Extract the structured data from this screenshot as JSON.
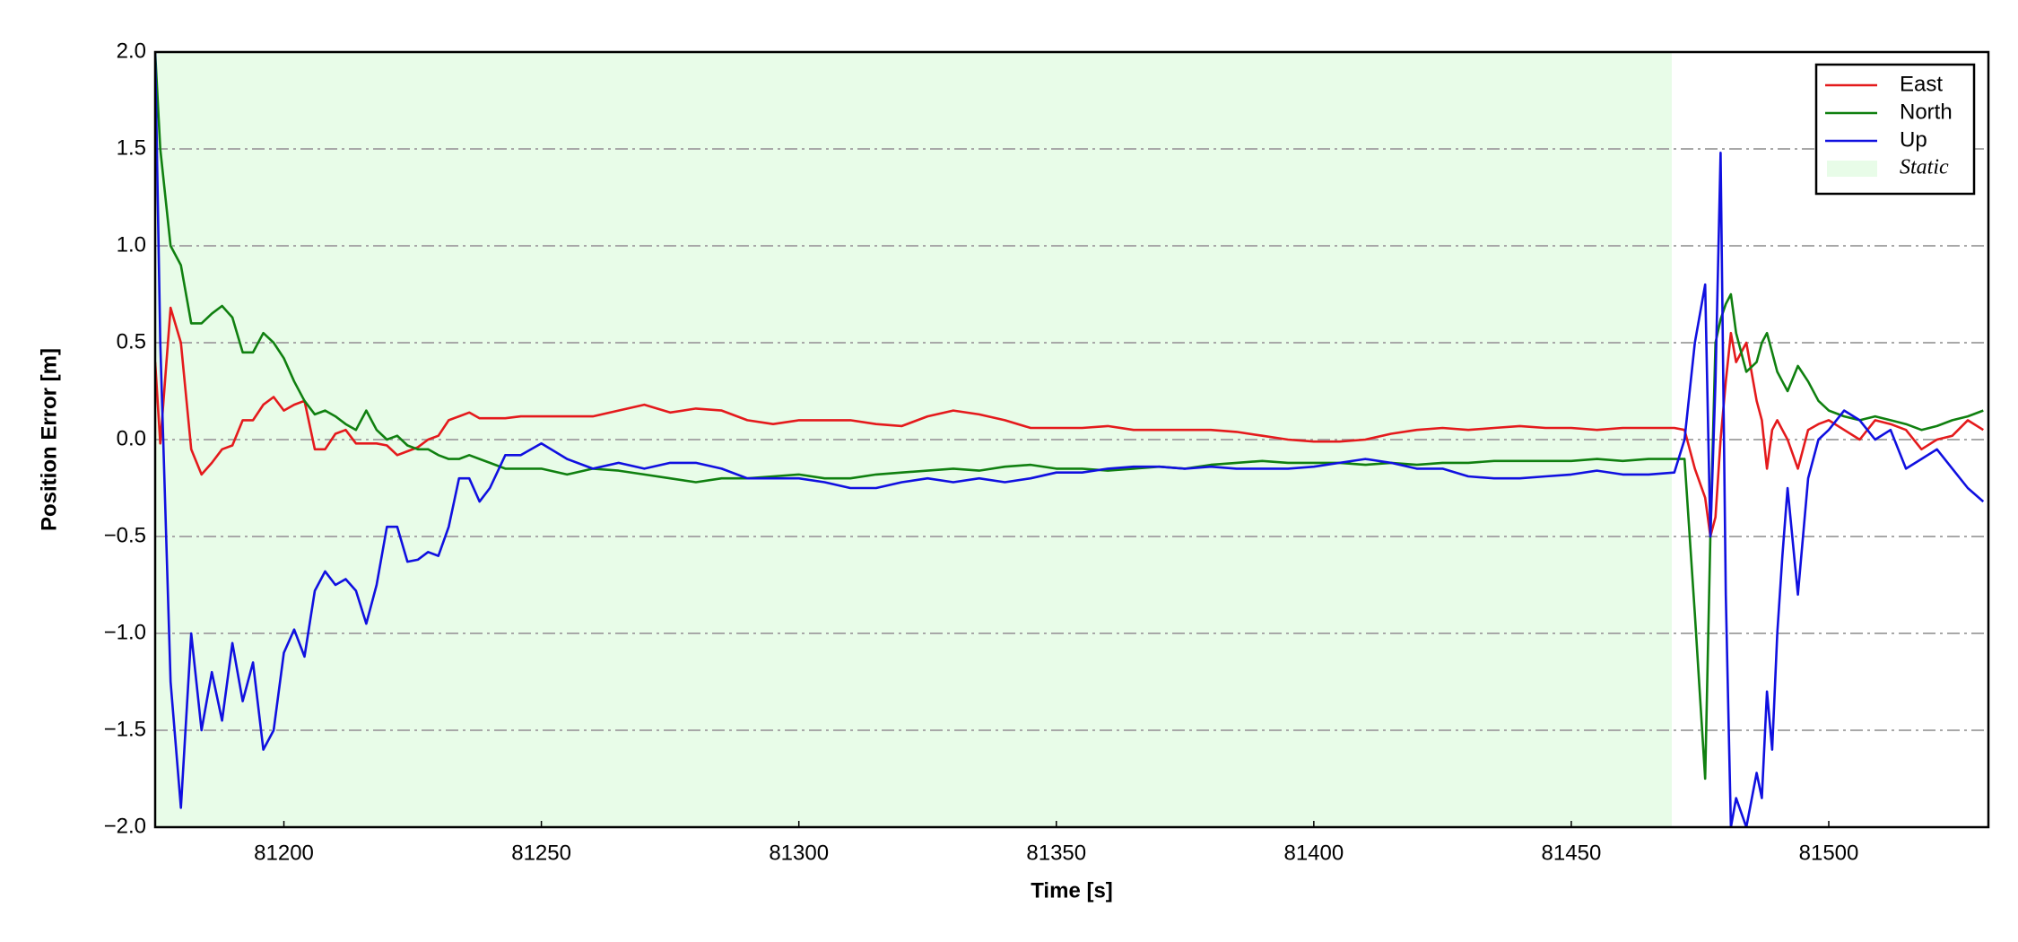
{
  "chart_data": {
    "type": "line",
    "xlabel": "Time [s]",
    "ylabel": "Position Error [m]",
    "x": [
      81175,
      81176,
      81178,
      81180,
      81182,
      81184,
      81186,
      81188,
      81190,
      81192,
      81194,
      81196,
      81198,
      81200,
      81202,
      81204,
      81206,
      81208,
      81210,
      81212,
      81214,
      81216,
      81218,
      81220,
      81222,
      81224,
      81226,
      81228,
      81230,
      81232,
      81234,
      81236,
      81238,
      81240,
      81243,
      81246,
      81250,
      81255,
      81260,
      81265,
      81270,
      81275,
      81280,
      81285,
      81290,
      81295,
      81300,
      81305,
      81310,
      81315,
      81320,
      81325,
      81330,
      81335,
      81340,
      81345,
      81350,
      81355,
      81360,
      81365,
      81370,
      81375,
      81380,
      81385,
      81390,
      81395,
      81400,
      81405,
      81410,
      81415,
      81420,
      81425,
      81430,
      81435,
      81440,
      81445,
      81450,
      81455,
      81460,
      81465,
      81470,
      81472,
      81474,
      81476,
      81477,
      81478,
      81479,
      81480,
      81481,
      81482,
      81484,
      81486,
      81487,
      81488,
      81489,
      81490,
      81491,
      81492,
      81494,
      81496,
      81498,
      81500,
      81503,
      81506,
      81509,
      81512,
      81515,
      81518,
      81521,
      81524,
      81527,
      81530
    ],
    "series": [
      {
        "name": "East",
        "color": "#e41a1c",
        "values": [
          0.4,
          -0.02,
          0.68,
          0.5,
          -0.05,
          -0.18,
          -0.12,
          -0.05,
          -0.03,
          0.1,
          0.1,
          0.18,
          0.22,
          0.15,
          0.18,
          0.2,
          -0.05,
          -0.05,
          0.03,
          0.05,
          -0.02,
          -0.02,
          -0.02,
          -0.03,
          -0.08,
          -0.06,
          -0.04,
          0.0,
          0.02,
          0.1,
          0.12,
          0.14,
          0.11,
          0.11,
          0.11,
          0.12,
          0.12,
          0.12,
          0.12,
          0.15,
          0.18,
          0.14,
          0.16,
          0.15,
          0.1,
          0.08,
          0.1,
          0.1,
          0.1,
          0.08,
          0.07,
          0.12,
          0.15,
          0.13,
          0.1,
          0.06,
          0.06,
          0.06,
          0.07,
          0.05,
          0.05,
          0.05,
          0.05,
          0.04,
          0.02,
          0.0,
          -0.01,
          -0.01,
          0.0,
          0.03,
          0.05,
          0.06,
          0.05,
          0.06,
          0.07,
          0.06,
          0.06,
          0.05,
          0.06,
          0.06,
          0.06,
          0.05,
          -0.15,
          -0.3,
          -0.5,
          -0.4,
          0.0,
          0.3,
          0.55,
          0.4,
          0.5,
          0.2,
          0.1,
          -0.15,
          0.05,
          0.1,
          0.05,
          0.0,
          -0.15,
          0.05,
          0.08,
          0.1,
          0.05,
          0.0,
          0.1,
          0.08,
          0.05,
          -0.05,
          0.0,
          0.02,
          0.1,
          0.05
        ]
      },
      {
        "name": "North",
        "color": "#108010",
        "values": [
          2.0,
          1.5,
          1.0,
          0.9,
          0.6,
          0.6,
          0.65,
          0.69,
          0.63,
          0.45,
          0.45,
          0.55,
          0.5,
          0.42,
          0.3,
          0.2,
          0.13,
          0.15,
          0.12,
          0.08,
          0.05,
          0.15,
          0.05,
          0.0,
          0.02,
          -0.03,
          -0.05,
          -0.05,
          -0.08,
          -0.1,
          -0.1,
          -0.08,
          -0.1,
          -0.12,
          -0.15,
          -0.15,
          -0.15,
          -0.18,
          -0.15,
          -0.16,
          -0.18,
          -0.2,
          -0.22,
          -0.2,
          -0.2,
          -0.19,
          -0.18,
          -0.2,
          -0.2,
          -0.18,
          -0.17,
          -0.16,
          -0.15,
          -0.16,
          -0.14,
          -0.13,
          -0.15,
          -0.15,
          -0.16,
          -0.15,
          -0.14,
          -0.15,
          -0.13,
          -0.12,
          -0.11,
          -0.12,
          -0.12,
          -0.12,
          -0.13,
          -0.12,
          -0.13,
          -0.12,
          -0.12,
          -0.11,
          -0.11,
          -0.11,
          -0.11,
          -0.1,
          -0.11,
          -0.1,
          -0.1,
          -0.1,
          -0.9,
          -1.75,
          -0.5,
          0.5,
          0.62,
          0.7,
          0.75,
          0.55,
          0.35,
          0.4,
          0.5,
          0.55,
          0.45,
          0.35,
          0.3,
          0.25,
          0.38,
          0.3,
          0.2,
          0.15,
          0.12,
          0.1,
          0.12,
          0.1,
          0.08,
          0.05,
          0.07,
          0.1,
          0.12,
          0.15
        ]
      },
      {
        "name": "Up",
        "color": "#1010e0",
        "values": [
          2.0,
          0.5,
          -1.25,
          -1.9,
          -1.0,
          -1.5,
          -1.2,
          -1.45,
          -1.05,
          -1.35,
          -1.15,
          -1.6,
          -1.5,
          -1.1,
          -0.98,
          -1.12,
          -0.78,
          -0.68,
          -0.75,
          -0.72,
          -0.78,
          -0.95,
          -0.75,
          -0.45,
          -0.45,
          -0.63,
          -0.62,
          -0.58,
          -0.6,
          -0.45,
          -0.2,
          -0.2,
          -0.32,
          -0.25,
          -0.08,
          -0.08,
          -0.02,
          -0.1,
          -0.15,
          -0.12,
          -0.15,
          -0.12,
          -0.12,
          -0.15,
          -0.2,
          -0.2,
          -0.2,
          -0.22,
          -0.25,
          -0.25,
          -0.22,
          -0.2,
          -0.22,
          -0.2,
          -0.22,
          -0.2,
          -0.17,
          -0.17,
          -0.15,
          -0.14,
          -0.14,
          -0.15,
          -0.14,
          -0.15,
          -0.15,
          -0.15,
          -0.14,
          -0.12,
          -0.1,
          -0.12,
          -0.15,
          -0.15,
          -0.19,
          -0.2,
          -0.2,
          -0.19,
          -0.18,
          -0.16,
          -0.18,
          -0.18,
          -0.17,
          0.0,
          0.5,
          0.8,
          -0.5,
          0.3,
          1.48,
          -0.8,
          -2.0,
          -1.85,
          -2.0,
          -1.72,
          -1.85,
          -1.3,
          -1.6,
          -1.0,
          -0.6,
          -0.25,
          -0.8,
          -0.2,
          0.0,
          0.05,
          0.15,
          0.1,
          0.0,
          0.05,
          -0.15,
          -0.1,
          -0.05,
          -0.15,
          -0.25,
          -0.32
        ]
      }
    ],
    "static_span": [
      81175,
      81469.5
    ],
    "static_label": "Static",
    "static_color": "#e8fce8",
    "xlim": [
      81175,
      81531
    ],
    "ylim": [
      -2.0,
      2.0
    ],
    "xticks": [
      81200,
      81250,
      81300,
      81350,
      81400,
      81450,
      81500
    ],
    "yticks": [
      {
        "value": -2.0,
        "label": "−2.0"
      },
      {
        "value": -1.5,
        "label": "−1.5"
      },
      {
        "value": -1.0,
        "label": "−1.0"
      },
      {
        "value": -0.5,
        "label": "−0.5"
      },
      {
        "value": 0.0,
        "label": "0.0"
      },
      {
        "value": 0.5,
        "label": "0.5"
      },
      {
        "value": 1.0,
        "label": "1.0"
      },
      {
        "value": 1.5,
        "label": "1.5"
      },
      {
        "value": 2.0,
        "label": "2.0"
      }
    ],
    "grid": true,
    "legend": "upper right"
  }
}
